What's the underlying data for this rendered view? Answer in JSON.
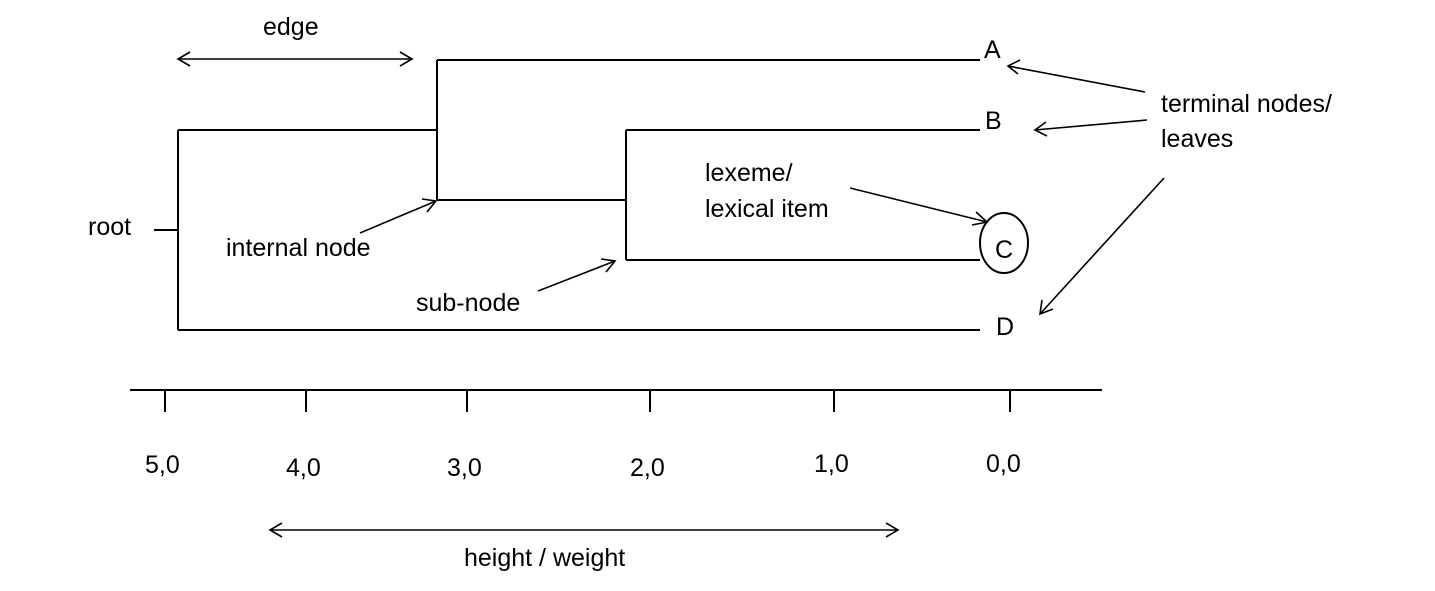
{
  "labels": {
    "edge": "edge",
    "root": "root",
    "internal_node": "internal node",
    "sub_node": "sub-node",
    "lexeme_line1": "lexeme/",
    "lexeme_line2": "lexical item",
    "terminal_line1": "terminal nodes/",
    "terminal_line2": "leaves",
    "height_weight": "height / weight"
  },
  "leaves": {
    "a": "A",
    "b": "B",
    "c": "C",
    "d": "D"
  },
  "axis": {
    "ticks": [
      "5,0",
      "4,0",
      "3,0",
      "2,0",
      "1,0",
      "0,0"
    ]
  },
  "colors": {
    "ink": "#000000",
    "background": "#ffffff"
  }
}
